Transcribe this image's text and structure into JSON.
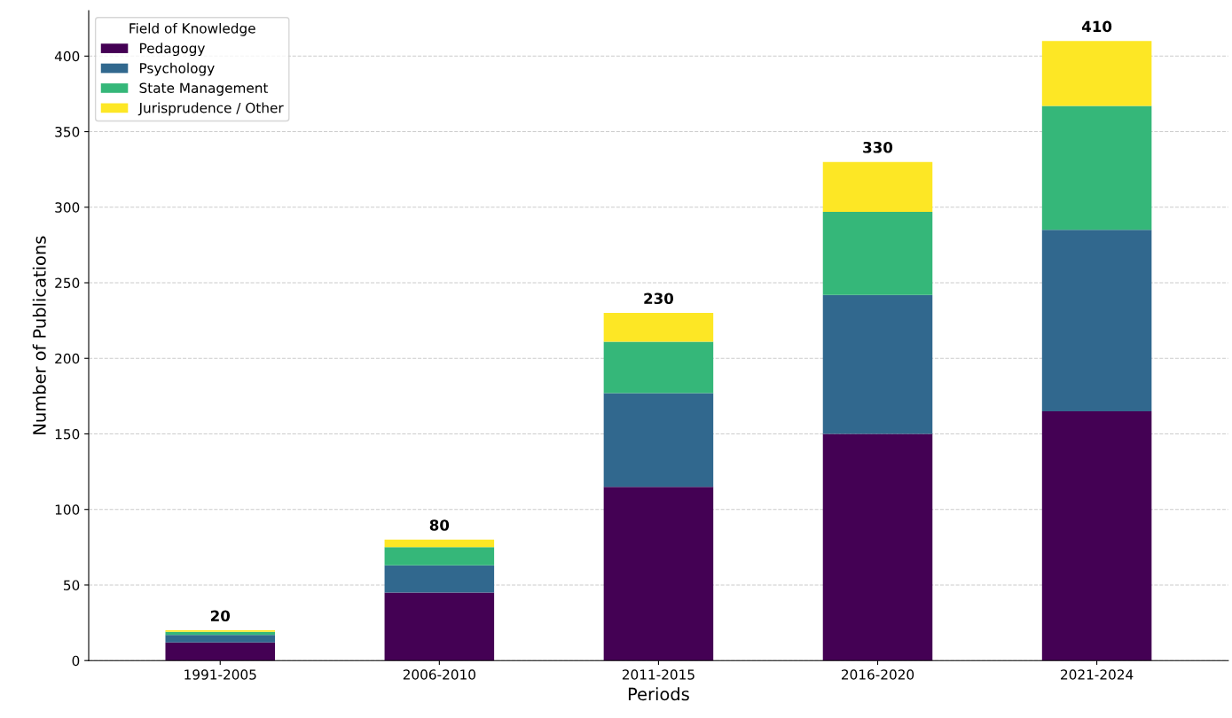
{
  "chart_data": {
    "type": "bar",
    "stacked": true,
    "xlabel": "Periods",
    "ylabel": "Number of Publications",
    "legend_title": "Field of Knowledge",
    "categories": [
      "1991-2005",
      "2006-2010",
      "2011-2015",
      "2016-2020",
      "2021-2024"
    ],
    "series": [
      {
        "name": "Pedagogy",
        "color": "#440154",
        "values": [
          12,
          45,
          115,
          150,
          165
        ]
      },
      {
        "name": "Psychology",
        "color": "#31688e",
        "values": [
          5,
          18,
          62,
          92,
          120
        ]
      },
      {
        "name": "State Management",
        "color": "#35b779",
        "values": [
          2,
          12,
          34,
          55,
          82
        ]
      },
      {
        "name": "Jurisprudence / Other",
        "color": "#fde725",
        "values": [
          1,
          5,
          19,
          33,
          43
        ]
      }
    ],
    "totals": [
      "20",
      "80",
      "230",
      "330",
      "410"
    ],
    "ylim": [
      0,
      430
    ],
    "yticks": [
      0,
      50,
      100,
      150,
      200,
      250,
      300,
      350,
      400
    ],
    "grid": "y",
    "legend": "top left"
  }
}
